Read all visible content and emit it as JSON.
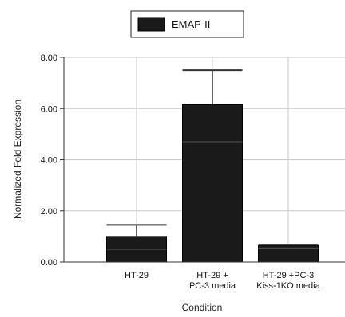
{
  "chart_data": {
    "type": "bar",
    "categories": [
      [
        "HT-29"
      ],
      [
        "HT-29 +",
        "PC-3 media"
      ],
      [
        "HT-29 +PC-3",
        "Kiss-1KO media"
      ]
    ],
    "series": [
      {
        "name": "EMAP-II",
        "values": [
          1.0,
          6.15,
          0.65
        ],
        "error_upper": [
          1.45,
          7.5,
          0.68
        ],
        "inner_line": [
          0.5,
          4.7,
          0.55
        ],
        "color": "#1a1a1a"
      }
    ],
    "xlabel": "Condition",
    "ylabel": "Normalized Fold Expression",
    "ylim": [
      0,
      8
    ],
    "yticks": [
      "0.00",
      "2.00",
      "4.00",
      "6.00",
      "8.00"
    ],
    "grid": true,
    "legend": "top-center"
  }
}
